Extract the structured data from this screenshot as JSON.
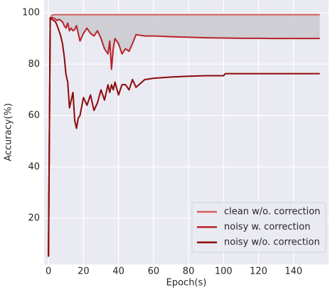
{
  "chart_data": {
    "type": "line",
    "x_label": "Epoch(s)",
    "y_label": "Accuracy(%)",
    "x": [
      0,
      1,
      2,
      3,
      4,
      5,
      6,
      7,
      8,
      9,
      10,
      11,
      12,
      13,
      14,
      15,
      16,
      17,
      18,
      20,
      22,
      24,
      26,
      28,
      30,
      32,
      34,
      35,
      36,
      37,
      38,
      40,
      42,
      44,
      46,
      48,
      50,
      55,
      60,
      70,
      80,
      90,
      100,
      101,
      110,
      120,
      130,
      140,
      150,
      155
    ],
    "series": [
      {
        "name": "clean w/o. correction",
        "color": "#d65f5f",
        "values": [
          5,
          98,
          99,
          99.3,
          99.3,
          99.3,
          99.3,
          99.3,
          99.3,
          99.3,
          99.3,
          99.3,
          99.3,
          99.3,
          99.3,
          99.3,
          99.3,
          99.3,
          99.3,
          99.3,
          99.3,
          99.3,
          99.3,
          99.3,
          99.3,
          99.3,
          99.3,
          99.3,
          99.3,
          99.3,
          99.3,
          99.3,
          99.3,
          99.3,
          99.3,
          99.3,
          99.3,
          99.3,
          99.3,
          99.3,
          99.3,
          99.3,
          99.3,
          99.3,
          99.3,
          99.3,
          99.3,
          99.3,
          99.3,
          99.3
        ]
      },
      {
        "name": "noisy w. correction",
        "color": "#b8232a",
        "values": [
          5,
          98,
          98,
          98,
          97.5,
          97,
          97.5,
          97,
          96.5,
          95,
          94,
          96,
          93,
          94,
          93,
          93.5,
          95,
          92,
          89,
          92,
          94,
          92,
          91,
          93,
          90,
          86,
          84,
          89,
          78,
          86,
          90,
          88,
          84,
          86,
          85,
          88,
          91.5,
          91,
          91,
          90.7,
          90.5,
          90.3,
          90.2,
          90.2,
          90.1,
          90.1,
          90,
          90,
          90,
          90
        ]
      },
      {
        "name": "noisy w/o. correction",
        "color": "#8b0a0a",
        "values": [
          5,
          98,
          97.5,
          97,
          96.5,
          95,
          93,
          91,
          88,
          83,
          76,
          73,
          63,
          66,
          69,
          58,
          55,
          59,
          60,
          67,
          64,
          68,
          62,
          65,
          70,
          66,
          72,
          69,
          72,
          70,
          73,
          68,
          72,
          72,
          70,
          74,
          71,
          74,
          74.5,
          75,
          75.3,
          75.5,
          75.5,
          76.3,
          76.3,
          76.3,
          76.3,
          76.3,
          76.3,
          76.3
        ]
      }
    ],
    "fill_between_color": "#c9c9cf",
    "xlim": [
      -2.5,
      160
    ],
    "ylim": [
      2,
      105
    ],
    "xticks": [
      0,
      20,
      40,
      60,
      80,
      100,
      120,
      140
    ],
    "yticks": [
      20,
      40,
      60,
      80,
      100
    ],
    "grid": true,
    "legend_position": "lower right"
  }
}
